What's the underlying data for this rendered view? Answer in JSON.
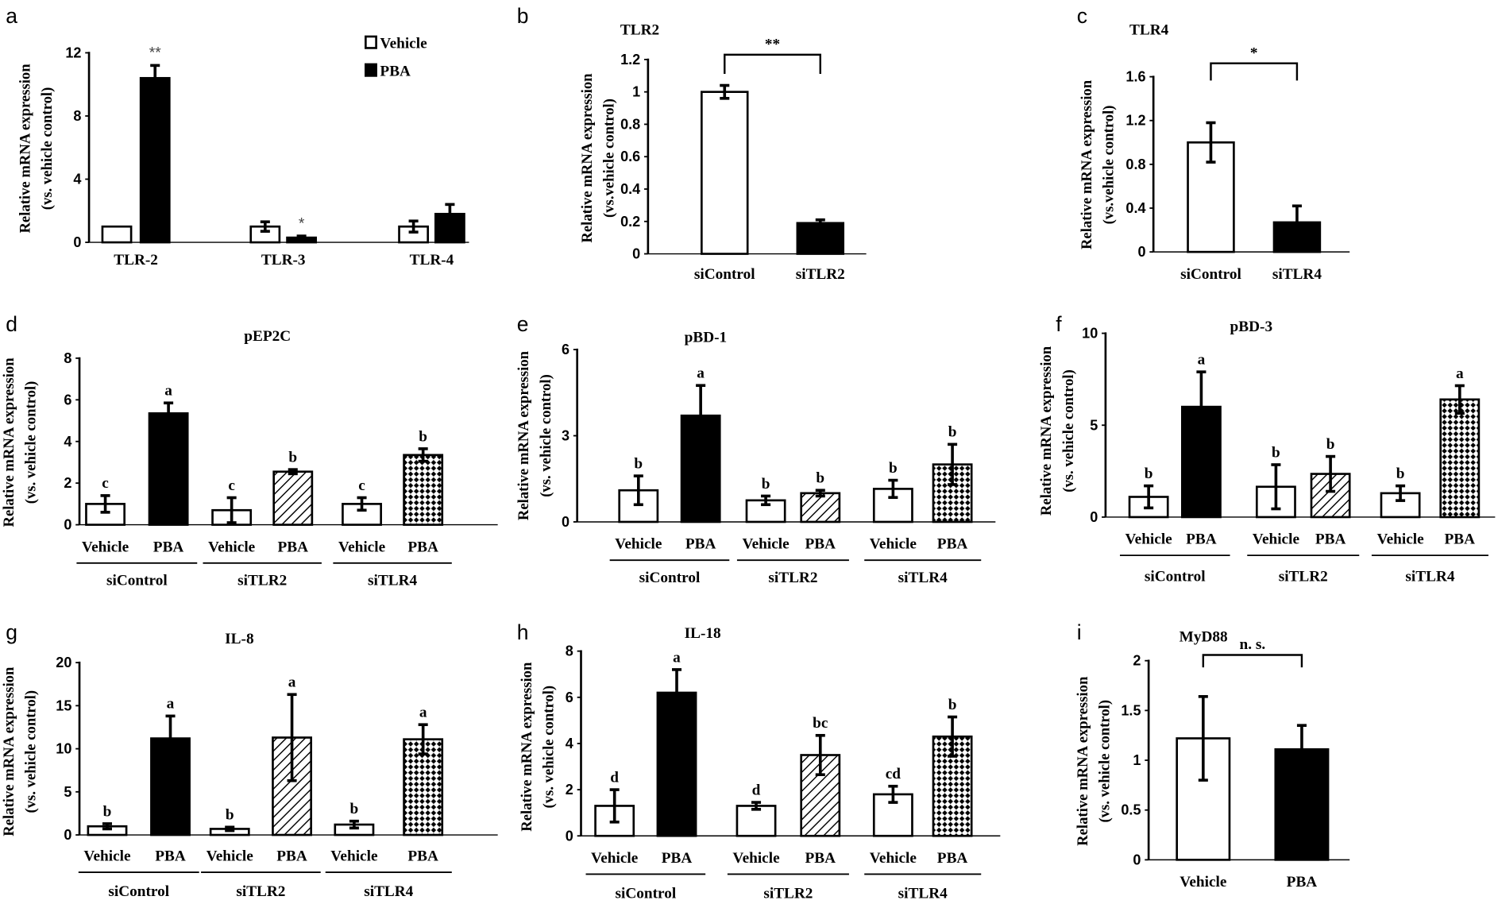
{
  "colors": {
    "vehicle": "#ffffff",
    "pba": "#000000",
    "outline": "#000000"
  },
  "chart_data": [
    {
      "panel": "a",
      "type": "bar",
      "title": "",
      "ylabel": [
        "Relative mRNA expression",
        "(vs. vehicle control)"
      ],
      "ylim": [
        0,
        12
      ],
      "yticks": [
        "0",
        "4",
        "8",
        "12"
      ],
      "ytick_values": [
        0,
        4,
        8,
        12
      ],
      "categories": [
        "TLR-2",
        "TLR-3",
        "TLR-4"
      ],
      "legend": {
        "position": "top-right",
        "entries": [
          "Vehicle",
          "PBA"
        ]
      },
      "series": [
        {
          "name": "Vehicle",
          "fill": "white",
          "values": [
            1.0,
            1.0,
            1.0
          ],
          "errors": [
            0.0,
            0.3,
            0.35
          ],
          "annotations": [
            "",
            "",
            ""
          ]
        },
        {
          "name": "PBA",
          "fill": "black",
          "values": [
            10.4,
            0.3,
            1.8
          ],
          "errors": [
            0.8,
            0.1,
            0.6
          ],
          "annotations": [
            "**",
            "*",
            ""
          ]
        }
      ]
    },
    {
      "panel": "b",
      "type": "bar",
      "title": "TLR2",
      "ylabel": [
        "Relative mRNA expression",
        "(vs.vehicle control)"
      ],
      "ylim": [
        0,
        1.2
      ],
      "yticks": [
        "0",
        "0.2",
        "0.4",
        "0.6",
        "0.8",
        "1",
        "1.2"
      ],
      "ytick_values": [
        0,
        0.2,
        0.4,
        0.6,
        0.8,
        1,
        1.2
      ],
      "categories": [
        "siControl",
        "siTLR2"
      ],
      "values": [
        1.0,
        0.19
      ],
      "errors": [
        0.04,
        0.02
      ],
      "fills": [
        "white",
        "black"
      ],
      "annotations": [
        "",
        ""
      ],
      "bracket": "**"
    },
    {
      "panel": "c",
      "type": "bar",
      "title": "TLR4",
      "ylabel": [
        "Relative mRNA expression",
        "(vs.vehicle control)"
      ],
      "ylim": [
        0,
        1.6
      ],
      "yticks": [
        "0",
        "0.4",
        "0.8",
        "1.2",
        "1.6"
      ],
      "ytick_values": [
        0,
        0.4,
        0.8,
        1.2,
        1.6
      ],
      "categories": [
        "siControl",
        "siTLR4"
      ],
      "values": [
        1.0,
        0.27
      ],
      "errors": [
        0.18,
        0.15
      ],
      "fills": [
        "white",
        "black"
      ],
      "annotations": [
        "",
        ""
      ],
      "bracket": "*"
    },
    {
      "panel": "d",
      "type": "bar",
      "title": "pEP2C",
      "ylabel": [
        "Relative mRNA expression",
        "(vs. vehicle control)"
      ],
      "ylim": [
        0,
        8
      ],
      "yticks": [
        "0",
        "2",
        "4",
        "6",
        "8"
      ],
      "ytick_values": [
        0,
        2,
        4,
        6,
        8
      ],
      "categories": [
        "Vehicle",
        "PBA",
        "Vehicle",
        "PBA",
        "Vehicle",
        "PBA"
      ],
      "groups": [
        "siControl",
        "siTLR2",
        "siTLR4"
      ],
      "values": [
        1.0,
        5.35,
        0.7,
        2.55,
        1.0,
        3.35
      ],
      "errors": [
        0.4,
        0.5,
        0.6,
        0.1,
        0.3,
        0.3
      ],
      "fills": [
        "white",
        "black",
        "white",
        "hatch",
        "white",
        "dots"
      ],
      "annotations": [
        "c",
        "a",
        "c",
        "b",
        "c",
        "b"
      ]
    },
    {
      "panel": "e",
      "type": "bar",
      "title": "pBD-1",
      "ylabel": [
        "Relative mRNA expression",
        "(vs. vehicle control)"
      ],
      "ylim": [
        0,
        6
      ],
      "yticks": [
        "0",
        "3",
        "6"
      ],
      "ytick_values": [
        0,
        3,
        6
      ],
      "categories": [
        "Vehicle",
        "PBA",
        "Vehicle",
        "PBA",
        "Vehicle",
        "PBA"
      ],
      "groups": [
        "siControl",
        "siTLR2",
        "siTLR4"
      ],
      "values": [
        1.1,
        3.7,
        0.75,
        1.0,
        1.15,
        2.0
      ],
      "errors": [
        0.5,
        1.05,
        0.15,
        0.1,
        0.3,
        0.7
      ],
      "fills": [
        "white",
        "black",
        "white",
        "hatch",
        "white",
        "dots"
      ],
      "annotations": [
        "b",
        "a",
        "b",
        "b",
        "b",
        "b"
      ]
    },
    {
      "panel": "f",
      "type": "bar",
      "title": "pBD-3",
      "ylabel": [
        "Relative mRNA expression",
        "(vs. vehicle control)"
      ],
      "ylim": [
        0,
        10
      ],
      "yticks": [
        "0",
        "5",
        "10"
      ],
      "ytick_values": [
        0,
        5,
        10
      ],
      "categories": [
        "Vehicle",
        "PBA",
        "Vehicle",
        "PBA",
        "Vehicle",
        "PBA"
      ],
      "groups": [
        "siControl",
        "siTLR2",
        "siTLR4"
      ],
      "values": [
        1.1,
        6.0,
        1.65,
        2.35,
        1.3,
        6.4
      ],
      "errors": [
        0.6,
        1.9,
        1.2,
        0.95,
        0.4,
        0.75
      ],
      "fills": [
        "white",
        "black",
        "white",
        "hatch",
        "white",
        "dots"
      ],
      "annotations": [
        "b",
        "a",
        "b",
        "b",
        "b",
        "a"
      ]
    },
    {
      "panel": "g",
      "type": "bar",
      "title": "IL-8",
      "ylabel": [
        "Relative mRNA expression",
        "(vs. vehicle control)"
      ],
      "ylim": [
        0,
        20
      ],
      "yticks": [
        "0",
        "5",
        "10",
        "15",
        "20"
      ],
      "ytick_values": [
        0,
        5,
        10,
        15,
        20
      ],
      "categories": [
        "Vehicle",
        "PBA",
        "Vehicle",
        "PBA",
        "Vehicle",
        "PBA"
      ],
      "groups": [
        "siControl",
        "siTLR2",
        "siTLR4"
      ],
      "values": [
        1.0,
        11.2,
        0.7,
        11.3,
        1.2,
        11.1
      ],
      "errors": [
        0.3,
        2.6,
        0.2,
        5.0,
        0.4,
        1.7
      ],
      "fills": [
        "white",
        "black",
        "white",
        "hatch",
        "white",
        "dots"
      ],
      "annotations": [
        "b",
        "a",
        "b",
        "a",
        "b",
        "a"
      ]
    },
    {
      "panel": "h",
      "type": "bar",
      "title": "IL-18",
      "ylabel": [
        "Relative mRNA expression",
        "(vs. vehicle control)"
      ],
      "ylim": [
        0,
        8
      ],
      "yticks": [
        "0",
        "2",
        "4",
        "6",
        "8"
      ],
      "ytick_values": [
        0,
        2,
        4,
        6,
        8
      ],
      "categories": [
        "Vehicle",
        "PBA",
        "Vehicle",
        "PBA",
        "Vehicle",
        "PBA"
      ],
      "groups": [
        "siControl",
        "siTLR2",
        "siTLR4"
      ],
      "values": [
        1.3,
        6.2,
        1.3,
        3.5,
        1.8,
        4.3
      ],
      "errors": [
        0.7,
        1.0,
        0.15,
        0.85,
        0.35,
        0.85
      ],
      "fills": [
        "white",
        "black",
        "white",
        "hatch",
        "white",
        "dots"
      ],
      "annotations": [
        "d",
        "a",
        "d",
        "bc",
        "cd",
        "b"
      ]
    },
    {
      "panel": "i",
      "type": "bar",
      "title": "MyD88",
      "ylabel": [
        "Relative mRNA expression",
        "(vs. vehicle control)"
      ],
      "ylim": [
        0,
        2
      ],
      "yticks": [
        "0",
        "0.5",
        "1",
        "1.5",
        "2"
      ],
      "ytick_values": [
        0,
        0.5,
        1,
        1.5,
        2
      ],
      "categories": [
        "Vehicle",
        "PBA"
      ],
      "values": [
        1.22,
        1.11
      ],
      "errors": [
        0.42,
        0.24
      ],
      "fills": [
        "white",
        "black"
      ],
      "annotations": [
        "",
        ""
      ],
      "bracket": "n. s."
    }
  ]
}
